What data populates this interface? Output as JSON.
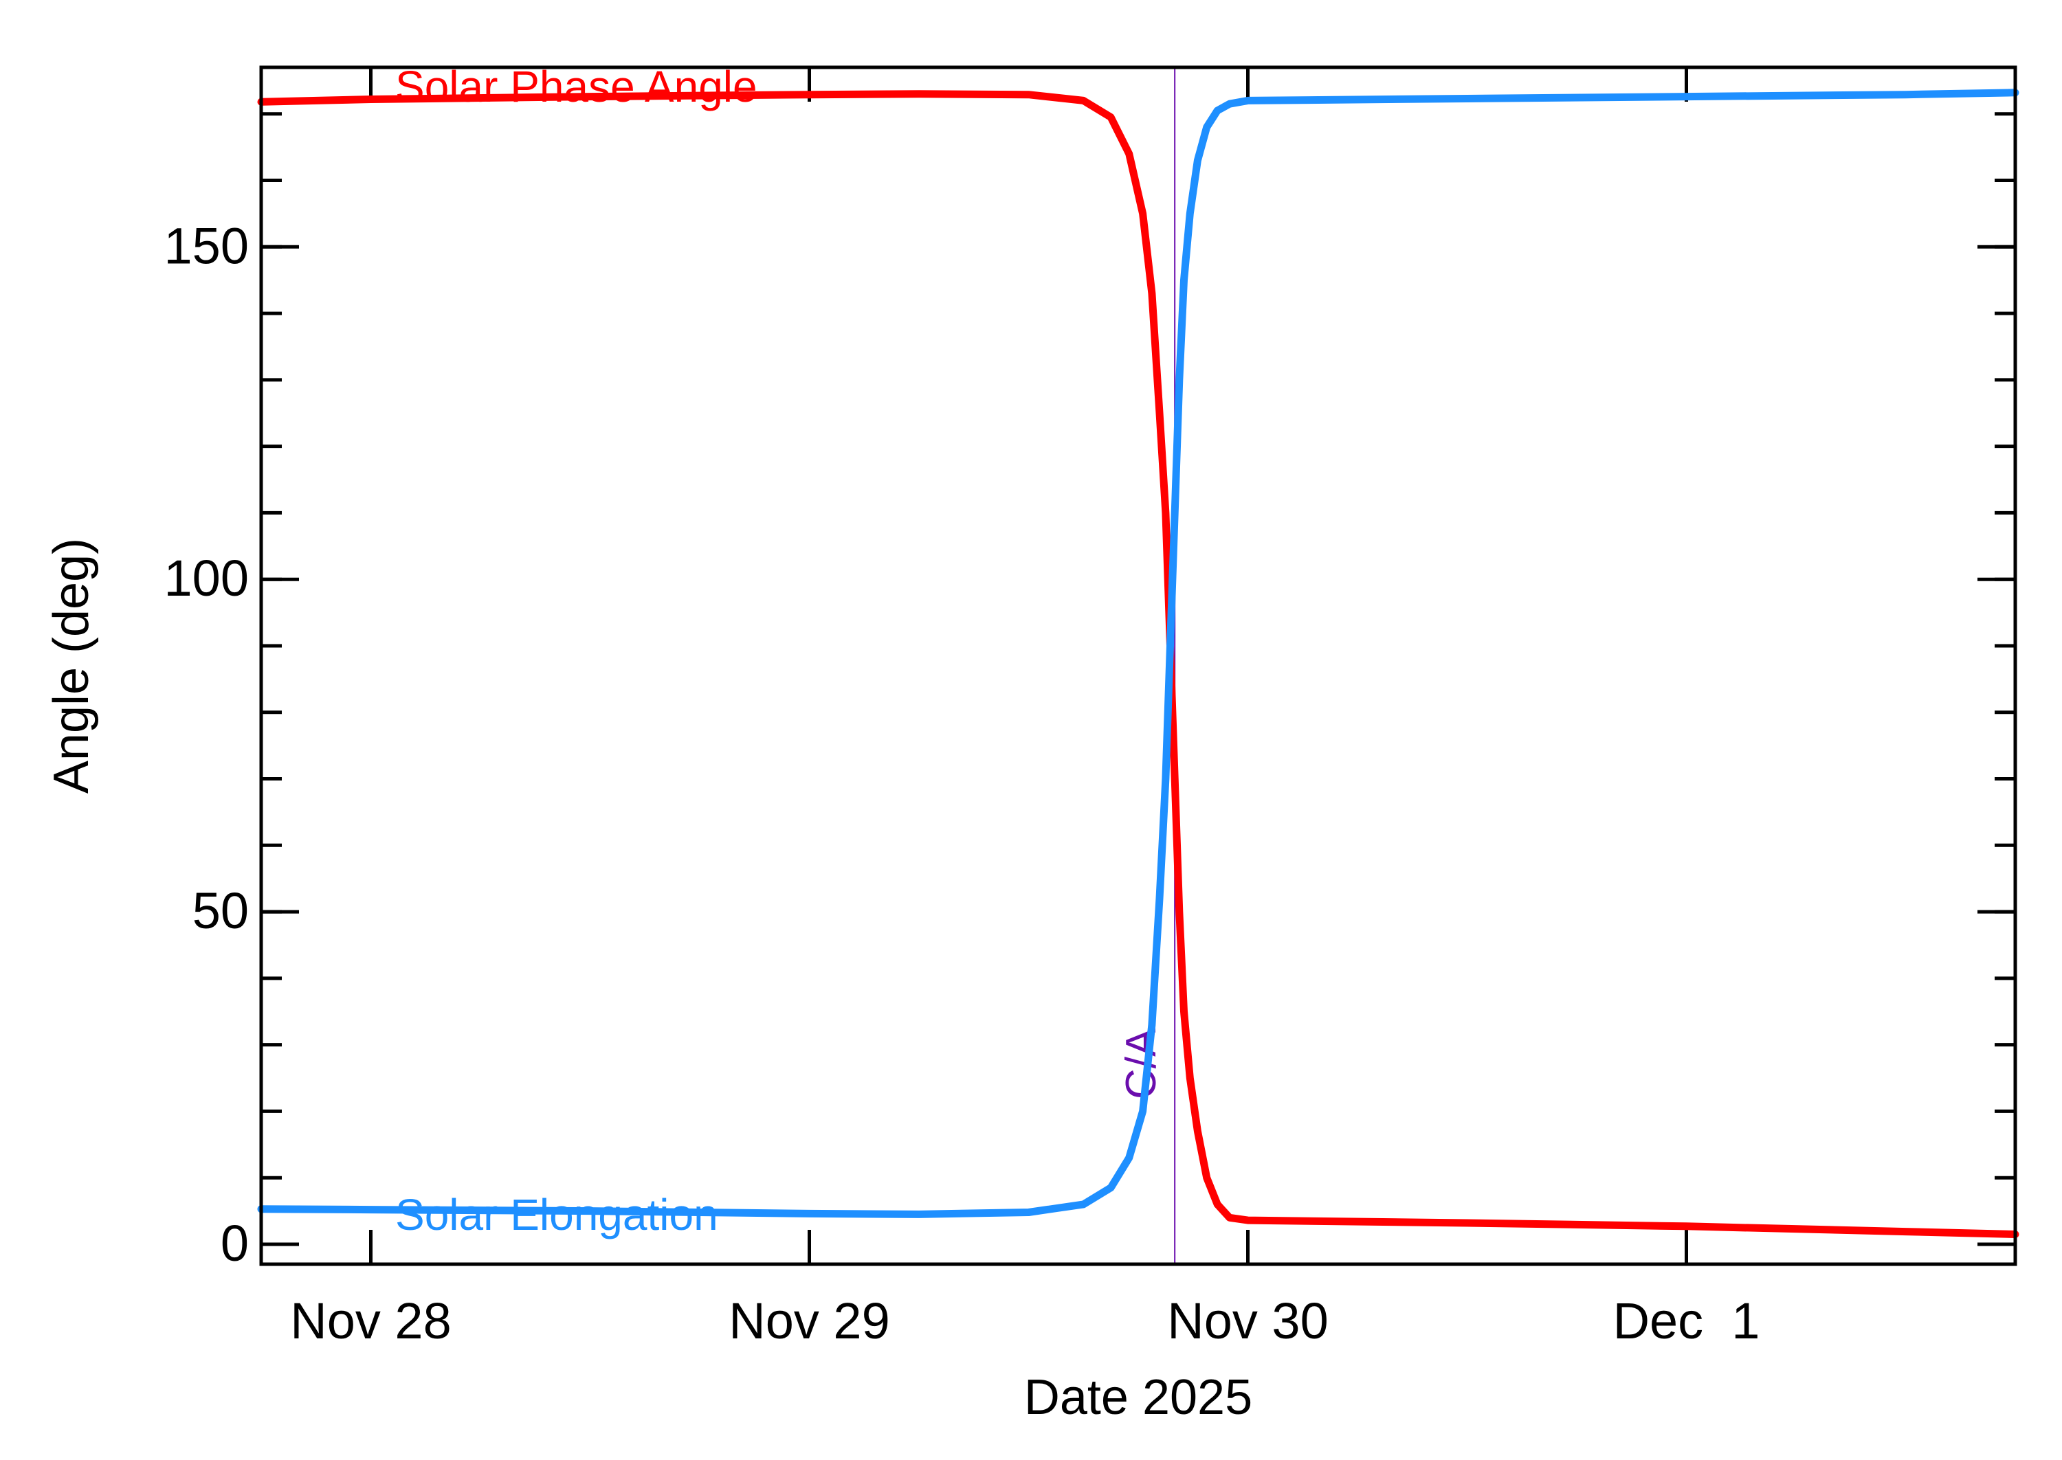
{
  "chart_data": {
    "type": "line",
    "title": "",
    "xlabel": "Date 2025",
    "ylabel": "Angle (deg)",
    "x_ticks": [
      {
        "date": "2025-11-28",
        "label": "Nov 28"
      },
      {
        "date": "2025-11-29",
        "label": "Nov 29"
      },
      {
        "date": "2025-11-30",
        "label": "Nov 30"
      },
      {
        "date": "2025-12-01",
        "label": "Dec  1"
      }
    ],
    "xlim": [
      "2025-11-27 18:00",
      "2025-12-01 18:00"
    ],
    "ylim": [
      -3,
      177
    ],
    "y_ticks": [
      0,
      50,
      100,
      150
    ],
    "y_minor_step": 10,
    "grid": false,
    "ca_marker": {
      "label": "C/A",
      "date": "2025-11-29 20:00",
      "color": "#6a0dad"
    },
    "series": [
      {
        "name": "Solar Phase Angle",
        "color": "#ff0000",
        "points": [
          [
            "2025-11-27 18:00",
            171.8
          ],
          [
            "2025-11-28 00:00",
            172.2
          ],
          [
            "2025-11-28 12:00",
            172.6
          ],
          [
            "2025-11-29 00:00",
            172.9
          ],
          [
            "2025-11-29 06:00",
            173.0
          ],
          [
            "2025-11-29 12:00",
            172.9
          ],
          [
            "2025-11-29 15:00",
            172.0
          ],
          [
            "2025-11-29 16:30",
            169.5
          ],
          [
            "2025-11-29 17:30",
            164.0
          ],
          [
            "2025-11-29 18:15",
            155.0
          ],
          [
            "2025-11-29 18:45",
            143.0
          ],
          [
            "2025-11-29 19:10",
            125.0
          ],
          [
            "2025-11-29 19:30",
            110.0
          ],
          [
            "2025-11-29 19:45",
            90.0
          ],
          [
            "2025-11-29 20:00",
            70.0
          ],
          [
            "2025-11-29 20:15",
            50.0
          ],
          [
            "2025-11-29 20:30",
            35.0
          ],
          [
            "2025-11-29 20:50",
            25.0
          ],
          [
            "2025-11-29 21:15",
            17.0
          ],
          [
            "2025-11-29 21:45",
            10.0
          ],
          [
            "2025-11-29 22:20",
            6.0
          ],
          [
            "2025-11-29 23:00",
            4.0
          ],
          [
            "2025-11-30 00:00",
            3.6
          ],
          [
            "2025-11-30 12:00",
            3.2
          ],
          [
            "2025-12-01 00:00",
            2.7
          ],
          [
            "2025-12-01 12:00",
            1.9
          ],
          [
            "2025-12-01 18:00",
            1.5
          ]
        ]
      },
      {
        "name": "Solar Elongation",
        "color": "#1e8fff",
        "points": [
          [
            "2025-11-27 18:00",
            5.3
          ],
          [
            "2025-11-28 00:00",
            5.2
          ],
          [
            "2025-11-28 12:00",
            5.0
          ],
          [
            "2025-11-29 00:00",
            4.6
          ],
          [
            "2025-11-29 06:00",
            4.5
          ],
          [
            "2025-11-29 12:00",
            4.8
          ],
          [
            "2025-11-29 15:00",
            6.0
          ],
          [
            "2025-11-29 16:30",
            8.5
          ],
          [
            "2025-11-29 17:30",
            13.0
          ],
          [
            "2025-11-29 18:15",
            20.0
          ],
          [
            "2025-11-29 18:45",
            33.0
          ],
          [
            "2025-11-29 19:10",
            52.0
          ],
          [
            "2025-11-29 19:30",
            70.0
          ],
          [
            "2025-11-29 19:45",
            90.0
          ],
          [
            "2025-11-29 20:00",
            110.0
          ],
          [
            "2025-11-29 20:15",
            130.0
          ],
          [
            "2025-11-29 20:30",
            145.0
          ],
          [
            "2025-11-29 20:50",
            155.0
          ],
          [
            "2025-11-29 21:15",
            163.0
          ],
          [
            "2025-11-29 21:45",
            168.0
          ],
          [
            "2025-11-29 22:20",
            170.5
          ],
          [
            "2025-11-29 23:00",
            171.5
          ],
          [
            "2025-11-30 00:00",
            172.0
          ],
          [
            "2025-11-30 12:00",
            172.3
          ],
          [
            "2025-12-01 00:00",
            172.6
          ],
          [
            "2025-12-01 12:00",
            172.9
          ],
          [
            "2025-12-01 18:00",
            173.2
          ]
        ]
      }
    ]
  }
}
